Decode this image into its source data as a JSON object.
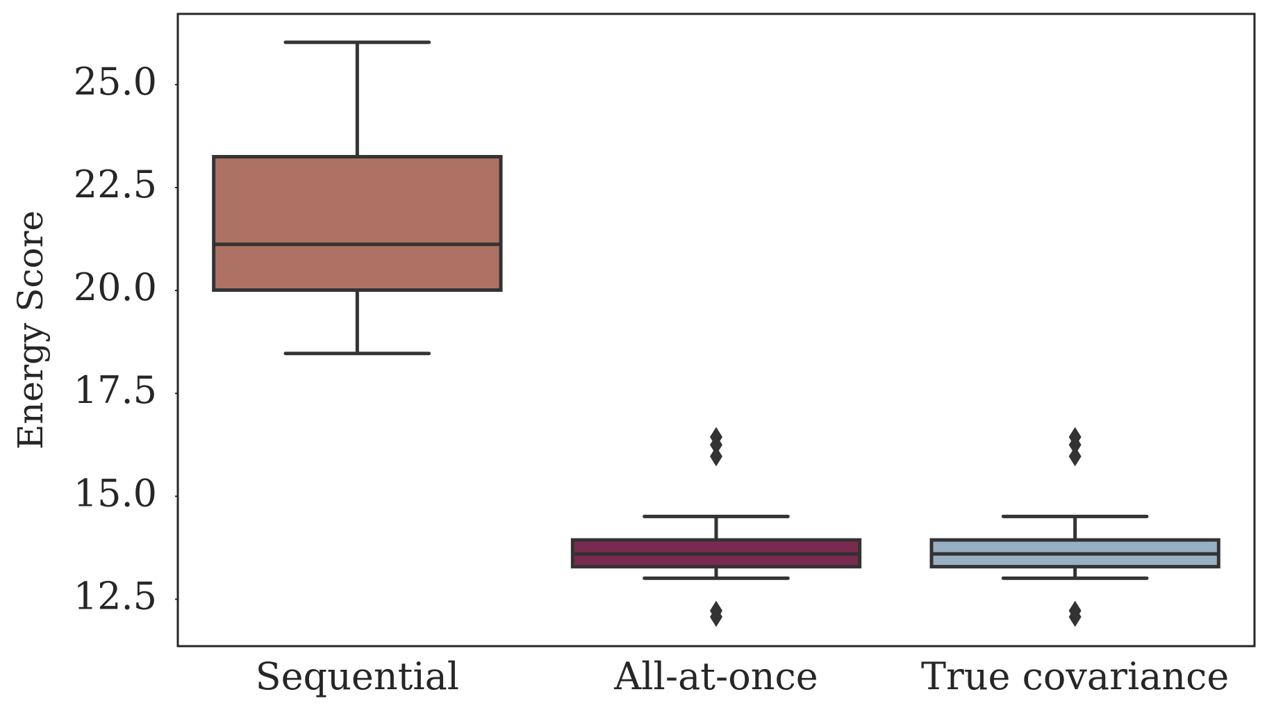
{
  "chart_data": {
    "type": "box",
    "y_label": "Energy Score",
    "categories": [
      "Sequential",
      "All-at-once",
      "True covariance"
    ],
    "series": [
      {
        "name": "Sequential",
        "color": "#ae7265",
        "whisker_low": 18.47,
        "q1": 20.01,
        "median": 21.12,
        "q3": 23.25,
        "whisker_high": 26.03,
        "outliers": []
      },
      {
        "name": "All-at-once",
        "color": "#7b2a4f",
        "whisker_low": 13.01,
        "q1": 13.29,
        "median": 13.6,
        "q3": 13.94,
        "whisker_high": 14.51,
        "outliers": [
          16.44,
          16.25,
          15.97,
          12.22,
          12.07
        ]
      },
      {
        "name": "True covariance",
        "color": "#97b0c3",
        "whisker_low": 13.01,
        "q1": 13.29,
        "median": 13.6,
        "q3": 13.94,
        "whisker_high": 14.51,
        "outliers": [
          16.44,
          16.25,
          15.97,
          12.22,
          12.07
        ]
      }
    ],
    "ylim": [
      11.36,
      26.72
    ],
    "yticks": [
      {
        "value": 12.5,
        "label": "12.5"
      },
      {
        "value": 15,
        "label": "15.0"
      },
      {
        "value": 17.5,
        "label": "17.5"
      },
      {
        "value": 20,
        "label": "20.0"
      },
      {
        "value": 22.5,
        "label": "22.5"
      },
      {
        "value": 25,
        "label": "25.0"
      }
    ],
    "grid": false
  }
}
